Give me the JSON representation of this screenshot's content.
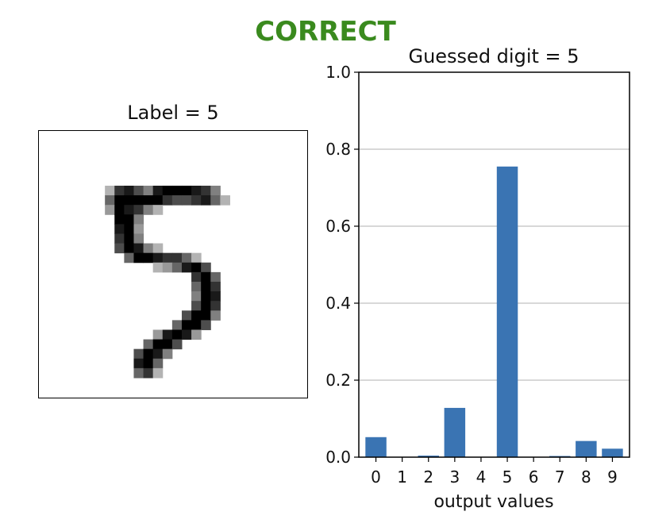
{
  "verdict": {
    "text": "CORRECT",
    "color": "#3a8a1e"
  },
  "digit_image": {
    "title": "Label = 5"
  },
  "chart_data": {
    "type": "bar",
    "title": "Guessed digit = 5",
    "xlabel": "output values",
    "ylabel": "",
    "categories": [
      "0",
      "1",
      "2",
      "3",
      "4",
      "5",
      "6",
      "7",
      "8",
      "9"
    ],
    "values": [
      0.052,
      0.0,
      0.004,
      0.128,
      0.0,
      0.755,
      0.0,
      0.003,
      0.042,
      0.022
    ],
    "ylim": [
      0,
      1.0
    ],
    "yticks": [
      "0.0",
      "0.2",
      "0.4",
      "0.6",
      "0.8",
      "1.0"
    ],
    "grid": "y",
    "bar_color": "#3a74b3"
  }
}
